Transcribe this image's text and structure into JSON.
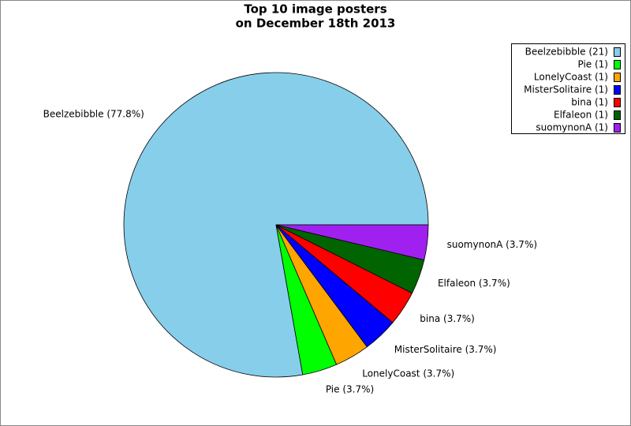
{
  "chart_data": {
    "type": "pie",
    "title": [
      "Top 10 image posters",
      "on December 18th 2013"
    ],
    "categories": [
      "Beelzebibble (21)",
      "Pie (1)",
      "LonelyCoast (1)",
      "MisterSolitaire (1)",
      "bina (1)",
      "Elfaleon (1)",
      "suomynonA (1)"
    ],
    "values": [
      77.8,
      3.7,
      3.7,
      3.7,
      3.7,
      3.7,
      3.7
    ],
    "value_labels": [
      "Beelzebibble (77.8%)",
      "Pie (3.7%)",
      "LonelyCoast (3.7%)",
      "MisterSolitaire (3.7%)",
      "bina (3.7%)",
      "Elfaleon (3.7%)",
      "suomynonA (3.7%)"
    ],
    "colors": [
      "#87ceeb",
      "#00ff00",
      "#ffa500",
      "#0000ff",
      "#ff0000",
      "#006400",
      "#a020f0"
    ],
    "legend": "upper right"
  }
}
